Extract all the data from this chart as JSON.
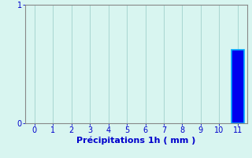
{
  "categories": [
    0,
    1,
    2,
    3,
    4,
    5,
    6,
    7,
    8,
    9,
    10,
    11
  ],
  "values": [
    0,
    0,
    0,
    0,
    0,
    0,
    0,
    0,
    0,
    0,
    0,
    0.62
  ],
  "bar_color": "#0000ee",
  "bar_edge_color": "#00aaff",
  "background_color": "#d8f5f0",
  "text_color": "#0000cc",
  "grid_color": "#a0d0cc",
  "spine_color": "#888888",
  "xlabel": "Précipitations 1h ( mm )",
  "ylim": [
    0,
    1
  ],
  "xlim": [
    -0.5,
    11.5
  ],
  "yticks": [
    0,
    1
  ],
  "xticks": [
    0,
    1,
    2,
    3,
    4,
    5,
    6,
    7,
    8,
    9,
    10,
    11
  ],
  "tick_fontsize": 7,
  "xlabel_fontsize": 8,
  "bar_width": 0.7
}
